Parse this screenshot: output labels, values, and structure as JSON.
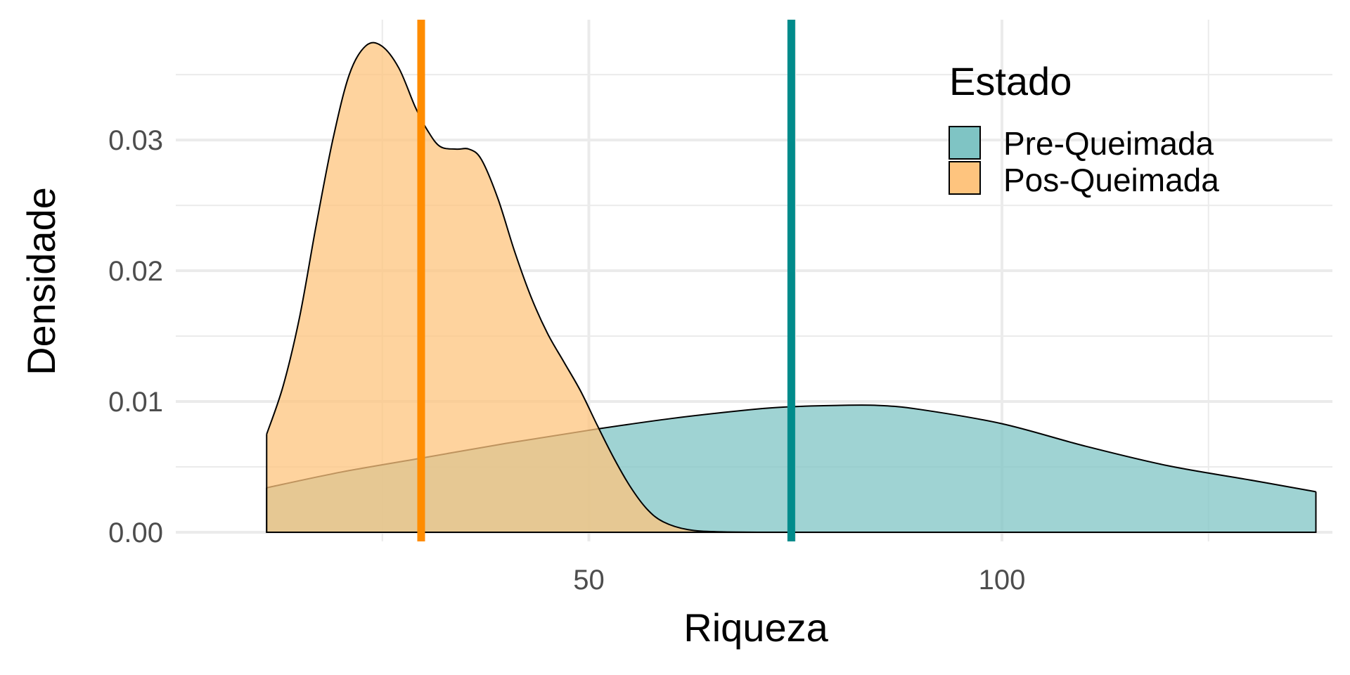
{
  "chart_data": {
    "type": "area",
    "xlabel": "Riqueza",
    "ylabel": "Densidade",
    "xlim": [
      0,
      140
    ],
    "ylim": [
      -0.0007,
      0.0392
    ],
    "x_ticks": [
      50,
      100
    ],
    "x_tick_labels": [
      "50",
      "100"
    ],
    "x_minor_ticks": [
      25,
      75,
      125
    ],
    "y_ticks": [
      0.0,
      0.01,
      0.02,
      0.03
    ],
    "y_tick_labels": [
      "0.00",
      "0.01",
      "0.02",
      "0.03"
    ],
    "y_minor_ticks": [
      0.005,
      0.015,
      0.025,
      0.035
    ],
    "grid": true,
    "legend": {
      "title": "Estado",
      "position": "top-right",
      "entries": [
        "Pre-Queimada",
        "Pos-Queimada"
      ]
    },
    "series": [
      {
        "name": "Pre-Queimada",
        "color": "#008B8B",
        "fill": "#7FC4C4",
        "mean": 74.5,
        "x": [
          11,
          20,
          30,
          40,
          50,
          60,
          70,
          74.5,
          80,
          85,
          90,
          100,
          110,
          120,
          130,
          138
        ],
        "y": [
          0.0034,
          0.0046,
          0.0057,
          0.0068,
          0.0078,
          0.0087,
          0.0094,
          0.0096,
          0.0097,
          0.0097,
          0.0094,
          0.0083,
          0.0066,
          0.0051,
          0.004,
          0.0031
        ]
      },
      {
        "name": "Pos-Queimada",
        "color": "#FF8C00",
        "fill": "#FEC47E",
        "mean": 29.7,
        "x": [
          11,
          13,
          15,
          17,
          19,
          21,
          23,
          24.9,
          27,
          29,
          30.5,
          32,
          34,
          35.5,
          37,
          39,
          41,
          43,
          45,
          47,
          49,
          51,
          53,
          55,
          57,
          59,
          62,
          66,
          72,
          80
        ],
        "y": [
          0.0075,
          0.0112,
          0.0165,
          0.0235,
          0.03,
          0.035,
          0.0372,
          0.0372,
          0.0355,
          0.0325,
          0.0307,
          0.0295,
          0.0293,
          0.0293,
          0.0285,
          0.0255,
          0.0215,
          0.018,
          0.0152,
          0.013,
          0.0108,
          0.0082,
          0.0057,
          0.0035,
          0.0018,
          0.0008,
          0.0002,
          3e-05,
          0.0,
          0.0
        ]
      }
    ]
  }
}
